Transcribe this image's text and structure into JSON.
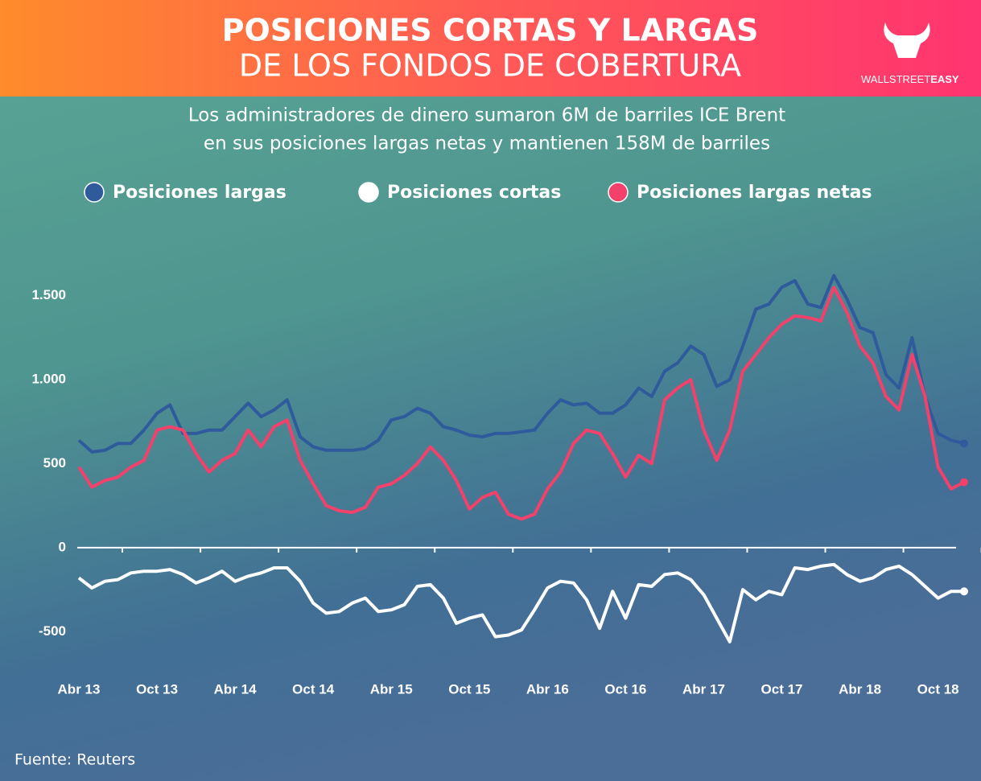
{
  "title_line1": "POSICIONES CORTAS Y LARGAS",
  "title_line2": "DE LOS FONDOS DE COBERTURA",
  "logo": {
    "part1": "WALLSTREET",
    "part2": "EASY"
  },
  "source": "Fuente: Reuters",
  "chart_data": {
    "type": "line",
    "subtitle_line1": "Los administradores de dinero sumaron 6M de barriles ICE Brent",
    "subtitle_line2": "en sus posiciones largas netas y mantienen 158M de barriles",
    "categories": [
      "Abr 13",
      null,
      null,
      null,
      null,
      null,
      "Oct 13",
      null,
      null,
      null,
      null,
      null,
      "Abr 14",
      null,
      null,
      null,
      null,
      null,
      "Oct 14",
      null,
      null,
      null,
      null,
      null,
      "Abr 15",
      null,
      null,
      null,
      null,
      null,
      "Oct 15",
      null,
      null,
      null,
      null,
      null,
      "Abr 16",
      null,
      null,
      null,
      null,
      null,
      "Oct 16",
      null,
      null,
      null,
      null,
      null,
      "Abr 17",
      null,
      null,
      null,
      null,
      null,
      "Oct 17",
      null,
      null,
      null,
      null,
      null,
      "Abr 18",
      null,
      null,
      null,
      null,
      null,
      "Oct 18",
      null,
      null
    ],
    "series": [
      {
        "name": "Posiciones largas",
        "color": "#2f5b9c",
        "values": [
          640,
          570,
          580,
          620,
          620,
          700,
          800,
          850,
          680,
          680,
          700,
          700,
          780,
          860,
          780,
          820,
          880,
          660,
          600,
          580,
          580,
          580,
          590,
          640,
          760,
          780,
          830,
          800,
          720,
          700,
          670,
          660,
          680,
          680,
          690,
          700,
          800,
          880,
          850,
          860,
          800,
          800,
          850,
          950,
          900,
          1050,
          1100,
          1200,
          1150,
          960,
          1000,
          1200,
          1420,
          1450,
          1550,
          1590,
          1450,
          1430,
          1620,
          1480,
          1310,
          1280,
          1030,
          950,
          1250,
          900,
          680,
          640,
          620
        ]
      },
      {
        "name": "Posiciones cortas",
        "color": "#ffffff",
        "values": [
          -180,
          -240,
          -200,
          -190,
          -150,
          -140,
          -140,
          -130,
          -160,
          -210,
          -180,
          -140,
          -200,
          -170,
          -150,
          -120,
          -120,
          -200,
          -330,
          -390,
          -380,
          -330,
          -300,
          -380,
          -370,
          -340,
          -230,
          -220,
          -300,
          -450,
          -420,
          -400,
          -530,
          -520,
          -490,
          -370,
          -240,
          -200,
          -210,
          -310,
          -480,
          -260,
          -420,
          -220,
          -230,
          -160,
          -150,
          -190,
          -280,
          -420,
          -560,
          -250,
          -310,
          -260,
          -280,
          -120,
          -130,
          -110,
          -100,
          -160,
          -200,
          -180,
          -130,
          -110,
          -160,
          -230,
          -300,
          -260,
          -260
        ]
      },
      {
        "name": "Posiciones largas netas",
        "color": "#f2416b",
        "values": [
          480,
          360,
          400,
          420,
          480,
          520,
          700,
          720,
          700,
          560,
          450,
          520,
          560,
          700,
          600,
          720,
          760,
          520,
          380,
          250,
          220,
          210,
          240,
          360,
          380,
          430,
          500,
          600,
          520,
          400,
          230,
          300,
          330,
          200,
          170,
          200,
          350,
          450,
          620,
          700,
          680,
          560,
          420,
          550,
          500,
          880,
          950,
          1000,
          700,
          520,
          700,
          1050,
          1150,
          1250,
          1330,
          1380,
          1370,
          1350,
          1550,
          1400,
          1200,
          1100,
          900,
          820,
          1150,
          900,
          480,
          350,
          390
        ]
      }
    ],
    "ylim": [
      -800,
      1800
    ],
    "yticks": [
      -500,
      0,
      500,
      {
        "value": 1000,
        "label": "1.000"
      },
      {
        "value": 1500,
        "label": "1.500"
      }
    ]
  }
}
